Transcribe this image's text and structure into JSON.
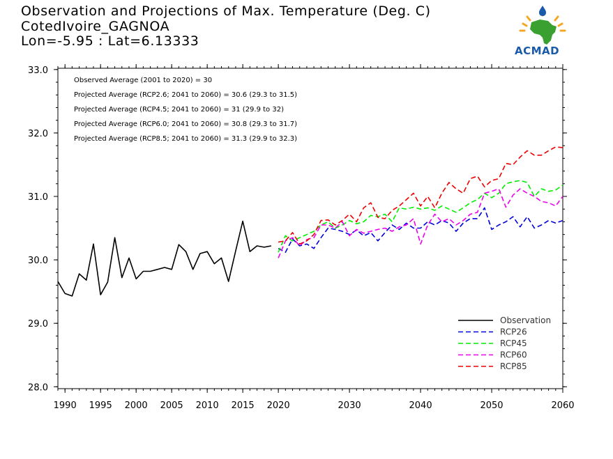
{
  "header": {
    "title": "Observation and Projections of Max. Temperature (Deg. C)",
    "station": "CotedIvoire_GAGNOA",
    "coords": "Lon=-5.95 : Lat=6.13333"
  },
  "logo": {
    "text": "ACMAD",
    "colors": {
      "africa": "#3aa02f",
      "sun": "#f5a623",
      "drop": "#1a5aa8"
    }
  },
  "stats": [
    "Observed Average (2001 to 2020) = 30",
    "Projected Average (RCP2.6; 2041 to 2060) = 30.6 (29.3 to 31.5)",
    "Projected Average (RCP4.5; 2041 to 2060) = 31 (29.9 to 32)",
    "Projected Average (RCP6.0; 2041 to 2060) = 30.8 (29.3 to 31.7)",
    "Projected Average (RCP8.5; 2041 to 2060) = 31.3 (29.9 to 32.3)"
  ],
  "chart_data": {
    "type": "line",
    "xlim": [
      1989,
      2060
    ],
    "ylim": [
      27.97,
      33.02
    ],
    "x_ticks": [
      1990,
      1995,
      2000,
      2005,
      2010,
      2015,
      2020,
      2030,
      2040,
      2050,
      2060
    ],
    "y_ticks": [
      "28.0",
      "29.0",
      "30.0",
      "31.0",
      "32.0",
      "33.0"
    ],
    "legend_position": "bottom-right",
    "series": [
      {
        "name": "Observation",
        "color": "#000000",
        "dashed": false,
        "x": [
          1989,
          1990,
          1991,
          1992,
          1993,
          1994,
          1995,
          1996,
          1997,
          1998,
          1999,
          2000,
          2001,
          2002,
          2003,
          2004,
          2005,
          2006,
          2007,
          2008,
          2009,
          2010,
          2011,
          2012,
          2013,
          2014,
          2015,
          2016,
          2017,
          2018,
          2019
        ],
        "y": [
          29.66,
          29.47,
          29.43,
          29.78,
          29.68,
          30.25,
          29.45,
          29.65,
          30.35,
          29.72,
          30.03,
          29.7,
          29.82,
          29.82,
          29.85,
          29.88,
          29.85,
          30.24,
          30.13,
          29.85,
          30.1,
          30.13,
          29.94,
          30.03,
          29.66,
          30.14,
          30.61,
          30.13,
          30.22,
          30.2,
          30.22
        ]
      },
      {
        "name": "RCP26",
        "color": "#0000dd",
        "dashed": true,
        "x": [
          2020,
          2021,
          2022,
          2023,
          2024,
          2025,
          2026,
          2027,
          2028,
          2029,
          2030,
          2031,
          2032,
          2033,
          2034,
          2035,
          2036,
          2037,
          2038,
          2039,
          2040,
          2041,
          2042,
          2043,
          2044,
          2045,
          2046,
          2047,
          2048,
          2049,
          2050,
          2051,
          2052,
          2053,
          2054,
          2055,
          2056,
          2057,
          2058,
          2059,
          2060
        ],
        "y": [
          30.18,
          30.12,
          30.33,
          30.22,
          30.25,
          30.18,
          30.35,
          30.5,
          30.48,
          30.45,
          30.4,
          30.47,
          30.38,
          30.43,
          30.3,
          30.43,
          30.55,
          30.48,
          30.58,
          30.5,
          30.5,
          30.6,
          30.55,
          30.62,
          30.58,
          30.45,
          30.58,
          30.65,
          30.65,
          30.82,
          30.48,
          30.55,
          30.6,
          30.68,
          30.52,
          30.68,
          30.5,
          30.55,
          30.62,
          30.58,
          30.62
        ]
      },
      {
        "name": "RCP45",
        "color": "#00ee00",
        "dashed": true,
        "x": [
          2020,
          2021,
          2022,
          2023,
          2024,
          2025,
          2026,
          2027,
          2028,
          2029,
          2030,
          2031,
          2032,
          2033,
          2034,
          2035,
          2036,
          2037,
          2038,
          2039,
          2040,
          2041,
          2042,
          2043,
          2044,
          2045,
          2046,
          2047,
          2048,
          2049,
          2050,
          2051,
          2052,
          2053,
          2054,
          2055,
          2056,
          2057,
          2058,
          2059,
          2060
        ],
        "y": [
          30.12,
          30.38,
          30.3,
          30.35,
          30.4,
          30.45,
          30.55,
          30.6,
          30.5,
          30.55,
          30.62,
          30.57,
          30.6,
          30.7,
          30.68,
          30.72,
          30.6,
          30.82,
          30.8,
          30.83,
          30.8,
          30.82,
          30.78,
          30.85,
          30.8,
          30.75,
          30.82,
          30.9,
          30.95,
          31.05,
          30.98,
          31.05,
          31.2,
          31.23,
          31.25,
          31.22,
          31.0,
          31.12,
          31.08,
          31.1,
          31.18
        ]
      },
      {
        "name": "RCP60",
        "color": "#ee00ee",
        "dashed": true,
        "x": [
          2020,
          2021,
          2022,
          2023,
          2024,
          2025,
          2026,
          2027,
          2028,
          2029,
          2030,
          2031,
          2032,
          2033,
          2034,
          2035,
          2036,
          2037,
          2038,
          2039,
          2040,
          2041,
          2042,
          2043,
          2044,
          2045,
          2046,
          2047,
          2048,
          2049,
          2050,
          2051,
          2052,
          2053,
          2054,
          2055,
          2056,
          2057,
          2058,
          2059,
          2060
        ],
        "y": [
          30.03,
          30.3,
          30.35,
          30.22,
          30.32,
          30.35,
          30.55,
          30.55,
          30.5,
          30.6,
          30.38,
          30.48,
          30.42,
          30.45,
          30.48,
          30.5,
          30.45,
          30.52,
          30.55,
          30.65,
          30.25,
          30.55,
          30.72,
          30.6,
          30.65,
          30.55,
          30.62,
          30.72,
          30.75,
          31.05,
          31.08,
          31.12,
          30.83,
          31.02,
          31.12,
          31.05,
          31.0,
          30.92,
          30.9,
          30.85,
          31.0
        ]
      },
      {
        "name": "RCP85",
        "color": "#ee0000",
        "dashed": true,
        "x": [
          2020,
          2021,
          2022,
          2023,
          2024,
          2025,
          2026,
          2027,
          2028,
          2029,
          2030,
          2031,
          2032,
          2033,
          2034,
          2035,
          2036,
          2037,
          2038,
          2039,
          2040,
          2041,
          2042,
          2043,
          2044,
          2045,
          2046,
          2047,
          2048,
          2049,
          2050,
          2051,
          2052,
          2053,
          2054,
          2055,
          2056,
          2057,
          2058,
          2059,
          2060
        ],
        "y": [
          30.28,
          30.3,
          30.43,
          30.25,
          30.3,
          30.4,
          30.62,
          30.63,
          30.55,
          30.62,
          30.72,
          30.6,
          30.82,
          30.9,
          30.67,
          30.65,
          30.78,
          30.85,
          30.95,
          31.05,
          30.85,
          31.0,
          30.82,
          31.05,
          31.22,
          31.12,
          31.05,
          31.28,
          31.32,
          31.15,
          31.25,
          31.28,
          31.52,
          31.5,
          31.62,
          31.72,
          31.65,
          31.65,
          31.72,
          31.78,
          31.77
        ]
      }
    ]
  }
}
